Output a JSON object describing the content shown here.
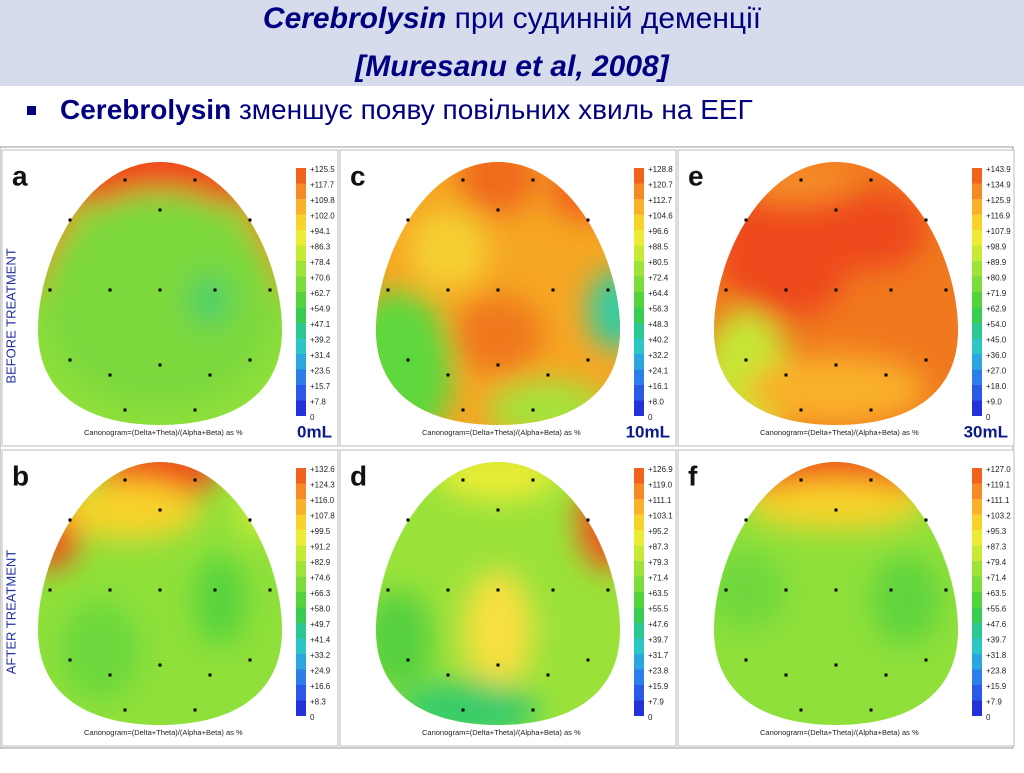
{
  "header": {
    "title_bold": "Cerebrolysin",
    "title_rest": "при судинній деменції",
    "citation": "[Muresanu et al, 2008]"
  },
  "bullet": {
    "bold": "Cerebrolysin",
    "rest": "зменшує появу повільних хвиль на ЕЕГ"
  },
  "row_labels": [
    "BEFORE TREATMENT",
    "AFTER TREATMENT"
  ],
  "panels": [
    {
      "letter": "a",
      "dose": "0mL",
      "caption": "Canonogram=(Delta+Theta)/(Alpha+Beta) as  %",
      "legend": [
        "+125.5",
        "+117.7",
        "+109.8",
        "+102.0",
        "+94.1",
        "+86.3",
        "+78.4",
        "+70.6",
        "+62.7",
        "+54.9",
        "+47.1",
        "+39.2",
        "+31.4",
        "+23.5",
        "+15.7",
        "+7.8",
        "0"
      ]
    },
    {
      "letter": "c",
      "dose": "10mL",
      "caption": "Canonogram=(Delta+Theta)/(Alpha+Beta) as  %",
      "legend": [
        "+128.8",
        "+120.7",
        "+112.7",
        "+104.6",
        "+96.6",
        "+88.5",
        "+80.5",
        "+72.4",
        "+64.4",
        "+56.3",
        "+48.3",
        "+40.2",
        "+32.2",
        "+24.1",
        "+16.1",
        "+8.0",
        "0"
      ]
    },
    {
      "letter": "e",
      "dose": "30mL",
      "caption": "Canonogram=(Delta+Theta)/(Alpha+Beta) as  %",
      "legend": [
        "+143.9",
        "+134.9",
        "+125.9",
        "+116.9",
        "+107.9",
        "+98.9",
        "+89.9",
        "+80.9",
        "+71.9",
        "+62.9",
        "+54.0",
        "+45.0",
        "+36.0",
        "+27.0",
        "+18.0",
        "+9.0",
        "0"
      ]
    },
    {
      "letter": "b",
      "caption": "Canonogram=(Delta+Theta)/(Alpha+Beta) as  %",
      "legend": [
        "+132.6",
        "+124.3",
        "+116.0",
        "+107.8",
        "+99.5",
        "+91.2",
        "+82.9",
        "+74.6",
        "+66.3",
        "+58.0",
        "+49.7",
        "+41.4",
        "+33.2",
        "+24.9",
        "+16.6",
        "+8.3",
        "0"
      ]
    },
    {
      "letter": "d",
      "caption": "Canonogram=(Delta+Theta)/(Alpha+Beta) as  %",
      "legend": [
        "+126.9",
        "+119.0",
        "+111.1",
        "+103.1",
        "+95.2",
        "+87.3",
        "+79.3",
        "+71.4",
        "+63.5",
        "+55.5",
        "+47.6",
        "+39.7",
        "+31.7",
        "+23.8",
        "+15.9",
        "+7.9",
        "0"
      ]
    },
    {
      "letter": "f",
      "caption": "Canonogram=(Delta+Theta)/(Alpha+Beta) as  %",
      "legend": [
        "+127.0",
        "+119.1",
        "+111.1",
        "+103.2",
        "+95.3",
        "+87.3",
        "+79.4",
        "+71.4",
        "+63.5",
        "+55.6",
        "+47.6",
        "+39.7",
        "+31.8",
        "+23.8",
        "+15.9",
        "+7.9",
        "0"
      ]
    }
  ]
}
